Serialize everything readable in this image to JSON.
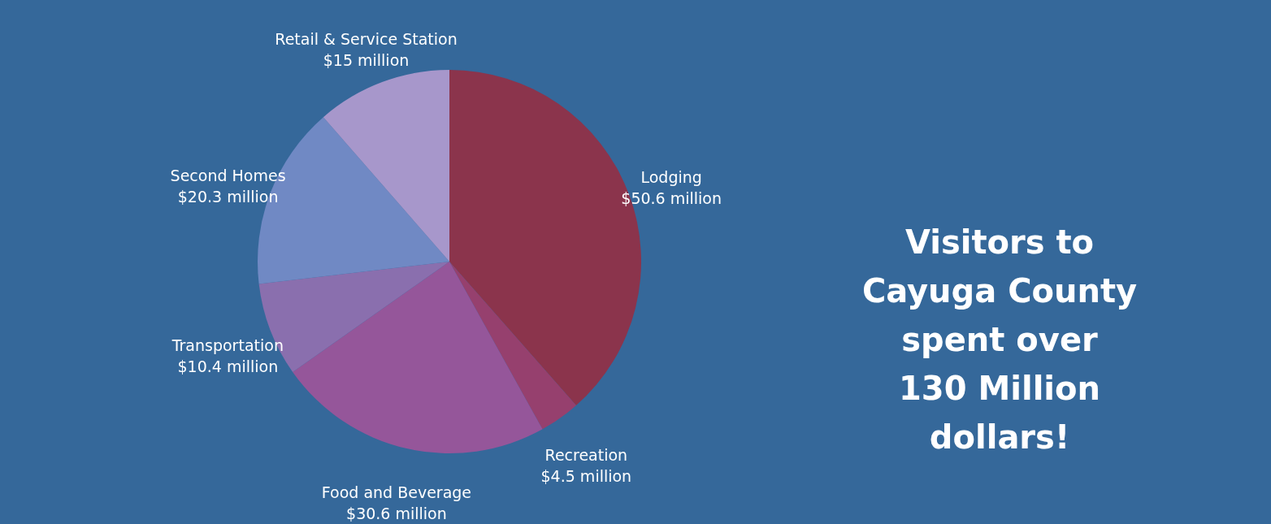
{
  "chart_data": {
    "type": "pie",
    "categories": [
      "Lodging",
      "Recreation",
      "Food and Beverage",
      "Transportation",
      "Second Homes",
      "Retail & Service Station"
    ],
    "values": [
      50.6,
      4.5,
      30.6,
      10.4,
      20.3,
      15
    ],
    "value_labels": [
      "$50.6 million",
      "$4.5 million",
      "$30.6 million",
      "$10.4 million",
      "$20.3 million",
      "$15 million"
    ],
    "colors": [
      "#8b344c",
      "#96406e",
      "#95569a",
      "#8a6fae",
      "#7089c4",
      "#a797cb"
    ],
    "annotations": [
      "Visitors to Cayuga County spent over 130 Million dollars!"
    ]
  }
}
